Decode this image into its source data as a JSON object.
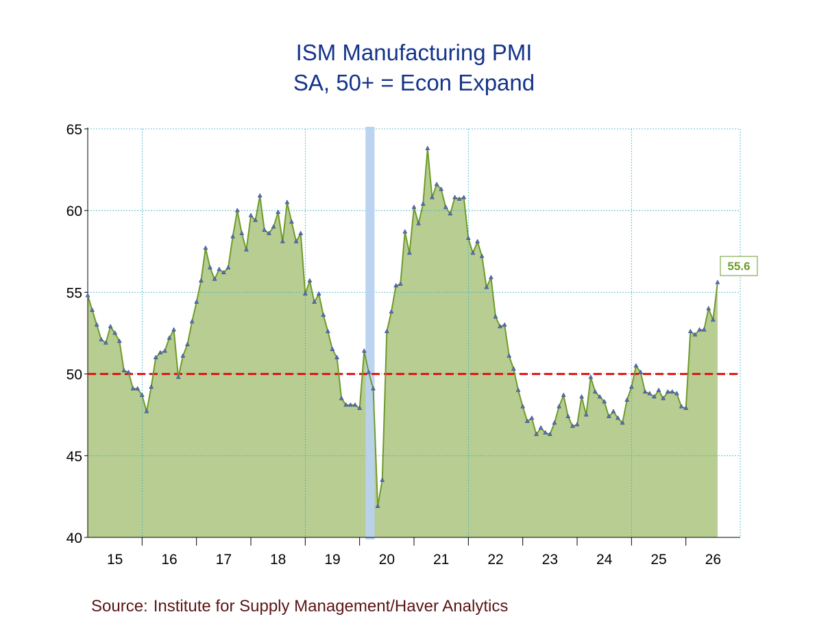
{
  "chart_data": {
    "type": "area",
    "title": "ISM Manufacturing PMI",
    "subtitle": "SA, 50+ = Econ Expand",
    "xlabel": "",
    "ylabel": "",
    "x_tick_labels": [
      "15",
      "16",
      "17",
      "18",
      "19",
      "20",
      "21",
      "22",
      "23",
      "24",
      "25",
      "26"
    ],
    "y_ticks": [
      40,
      45,
      50,
      55,
      60,
      65
    ],
    "ylim": [
      40,
      65
    ],
    "x_start": "2015-01",
    "x_end": "2026-01",
    "grid": true,
    "reference_line": {
      "value": 50,
      "color": "#e01010",
      "style": "dashed"
    },
    "recession_shading": {
      "start": "2020-02",
      "end": "2020-04",
      "color": "#b8d2ee"
    },
    "series": [
      {
        "color": "#6e9a2a",
        "fill": "#b8cd91",
        "marker_color": "#5a6fb8",
        "last_label": "55.6",
        "points": [
          [
            "2015-01",
            54.8
          ],
          [
            "2015-02",
            53.9
          ],
          [
            "2015-03",
            53.0
          ],
          [
            "2015-04",
            52.1
          ],
          [
            "2015-05",
            51.9
          ],
          [
            "2015-06",
            52.9
          ],
          [
            "2015-07",
            52.5
          ],
          [
            "2015-08",
            52.0
          ],
          [
            "2015-09",
            50.2
          ],
          [
            "2015-10",
            50.1
          ],
          [
            "2015-11",
            49.1
          ],
          [
            "2015-12",
            49.1
          ],
          [
            "2016-01",
            48.7
          ],
          [
            "2016-02",
            47.7
          ],
          [
            "2016-03",
            49.2
          ],
          [
            "2016-04",
            51.0
          ],
          [
            "2016-05",
            51.3
          ],
          [
            "2016-06",
            51.4
          ],
          [
            "2016-07",
            52.2
          ],
          [
            "2016-08",
            52.7
          ],
          [
            "2016-09",
            49.8
          ],
          [
            "2016-10",
            51.1
          ],
          [
            "2016-11",
            51.8
          ],
          [
            "2016-12",
            53.2
          ],
          [
            "2017-01",
            54.4
          ],
          [
            "2017-02",
            55.7
          ],
          [
            "2017-03",
            57.7
          ],
          [
            "2017-04",
            56.5
          ],
          [
            "2017-05",
            55.8
          ],
          [
            "2017-06",
            56.4
          ],
          [
            "2017-07",
            56.2
          ],
          [
            "2017-08",
            56.5
          ],
          [
            "2017-09",
            58.4
          ],
          [
            "2017-10",
            60.0
          ],
          [
            "2017-11",
            58.6
          ],
          [
            "2017-12",
            57.6
          ],
          [
            "2018-01",
            59.7
          ],
          [
            "2018-02",
            59.4
          ],
          [
            "2018-03",
            60.9
          ],
          [
            "2018-04",
            58.8
          ],
          [
            "2018-05",
            58.6
          ],
          [
            "2018-06",
            59.0
          ],
          [
            "2018-07",
            59.9
          ],
          [
            "2018-08",
            58.1
          ],
          [
            "2018-09",
            60.5
          ],
          [
            "2018-10",
            59.3
          ],
          [
            "2018-11",
            58.1
          ],
          [
            "2018-12",
            58.6
          ],
          [
            "2019-01",
            54.9
          ],
          [
            "2019-02",
            55.7
          ],
          [
            "2019-03",
            54.4
          ],
          [
            "2019-04",
            54.9
          ],
          [
            "2019-05",
            53.6
          ],
          [
            "2019-06",
            52.6
          ],
          [
            "2019-07",
            51.5
          ],
          [
            "2019-08",
            51.0
          ],
          [
            "2019-09",
            48.5
          ],
          [
            "2019-10",
            48.1
          ],
          [
            "2019-11",
            48.1
          ],
          [
            "2019-12",
            48.1
          ],
          [
            "2020-01",
            47.9
          ],
          [
            "2020-02",
            51.4
          ],
          [
            "2020-03",
            50.1
          ],
          [
            "2020-04",
            49.1
          ],
          [
            "2020-05",
            41.9
          ],
          [
            "2020-06",
            43.5
          ],
          [
            "2020-07",
            52.6
          ],
          [
            "2020-08",
            53.8
          ],
          [
            "2020-09",
            55.4
          ],
          [
            "2020-10",
            55.5
          ],
          [
            "2020-11",
            58.7
          ],
          [
            "2020-12",
            57.4
          ],
          [
            "2021-01",
            60.2
          ],
          [
            "2021-02",
            59.2
          ],
          [
            "2021-03",
            60.4
          ],
          [
            "2021-04",
            63.8
          ],
          [
            "2021-05",
            60.8
          ],
          [
            "2021-06",
            61.6
          ],
          [
            "2021-07",
            61.3
          ],
          [
            "2021-08",
            60.2
          ],
          [
            "2021-09",
            59.8
          ],
          [
            "2021-10",
            60.8
          ],
          [
            "2021-11",
            60.7
          ],
          [
            "2021-12",
            60.8
          ],
          [
            "2022-01",
            58.3
          ],
          [
            "2022-02",
            57.4
          ],
          [
            "2022-03",
            58.1
          ],
          [
            "2022-04",
            57.2
          ],
          [
            "2022-05",
            55.3
          ],
          [
            "2022-06",
            55.9
          ],
          [
            "2022-07",
            53.5
          ],
          [
            "2022-08",
            52.9
          ],
          [
            "2022-09",
            53.0
          ],
          [
            "2022-10",
            51.1
          ],
          [
            "2022-11",
            50.3
          ],
          [
            "2022-12",
            49.0
          ],
          [
            "2023-01",
            48.0
          ],
          [
            "2023-02",
            47.1
          ],
          [
            "2023-03",
            47.3
          ],
          [
            "2023-04",
            46.3
          ],
          [
            "2023-05",
            46.7
          ],
          [
            "2023-06",
            46.4
          ],
          [
            "2023-07",
            46.3
          ],
          [
            "2023-08",
            47.0
          ],
          [
            "2023-09",
            48.0
          ],
          [
            "2023-10",
            48.7
          ],
          [
            "2023-11",
            47.4
          ],
          [
            "2023-12",
            46.8
          ],
          [
            "2024-01",
            46.9
          ],
          [
            "2024-02",
            48.6
          ],
          [
            "2024-03",
            47.5
          ],
          [
            "2024-04",
            49.8
          ],
          [
            "2024-05",
            48.9
          ],
          [
            "2024-06",
            48.6
          ],
          [
            "2024-07",
            48.3
          ],
          [
            "2024-08",
            47.4
          ],
          [
            "2024-09",
            47.7
          ],
          [
            "2024-10",
            47.3
          ],
          [
            "2024-11",
            47.0
          ],
          [
            "2024-12",
            48.4
          ],
          [
            "2025-01",
            49.2
          ],
          [
            "2025-02",
            50.5
          ],
          [
            "2025-03",
            50.1
          ],
          [
            "2025-04",
            48.9
          ],
          [
            "2025-05",
            48.8
          ],
          [
            "2025-06",
            48.6
          ],
          [
            "2025-07",
            49.0
          ],
          [
            "2025-08",
            48.5
          ],
          [
            "2025-09",
            48.9
          ],
          [
            "2025-10",
            48.9
          ],
          [
            "2025-11",
            48.8
          ],
          [
            "2025-12",
            48.0
          ],
          [
            "2026-01",
            47.9
          ],
          [
            "2026-02",
            52.6
          ],
          [
            "2026-03",
            52.4
          ],
          [
            "2026-04",
            52.7
          ],
          [
            "2026-05",
            52.7
          ],
          [
            "2026-06",
            54.0
          ],
          [
            "2026-07",
            53.3
          ],
          [
            "2026-08",
            55.6
          ]
        ]
      }
    ]
  },
  "footer": {
    "source_prefix": "Source:",
    "source_text": "Institute for Supply Management/Haver Analytics"
  }
}
